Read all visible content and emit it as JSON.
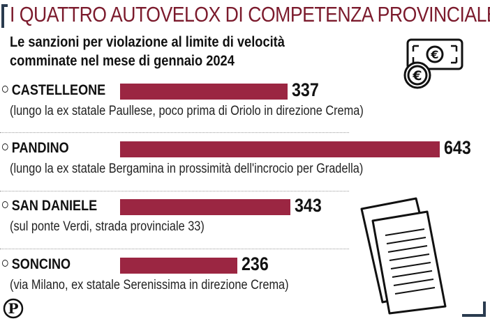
{
  "title": "I QUATTRO AUTOVELOX DI COMPETENZA PROVINCIALE",
  "subtitle": {
    "line1": "Le sanzioni per violazione al limite di velocità",
    "line2": "comminate nel mese di gennaio 2024"
  },
  "icons": {
    "money": "euro-banknote-coins-icon",
    "documents": "documents-icon",
    "logo": "publisher-logo-icon"
  },
  "colors": {
    "title": "#7b1a2c",
    "bar": "#9b2642"
  },
  "chart_data": {
    "type": "bar",
    "orientation": "horizontal",
    "title": "I QUATTRO AUTOVELOX DI COMPETENZA PROVINCIALE",
    "subtitle": "Le sanzioni per violazione al limite di velocità comminate nel mese di gennaio 2024",
    "categories": [
      "CASTELLEONE",
      "PANDINO",
      "SAN DANIELE",
      "SONCINO"
    ],
    "values": [
      337,
      643,
      343,
      236
    ],
    "notes": [
      "(lungo la ex statale Paullese, poco prima di Oriolo in direzione Crema)",
      "(lungo la ex statale Bergamina in prossimità dell'incrocio per Gradella)",
      "(sul ponte Verdi, strada provinciale 33)",
      "(via Milano, ex statale Serenissima in direzione Crema)"
    ],
    "xlim": [
      0,
      643
    ],
    "grid": false,
    "legend": "none"
  }
}
